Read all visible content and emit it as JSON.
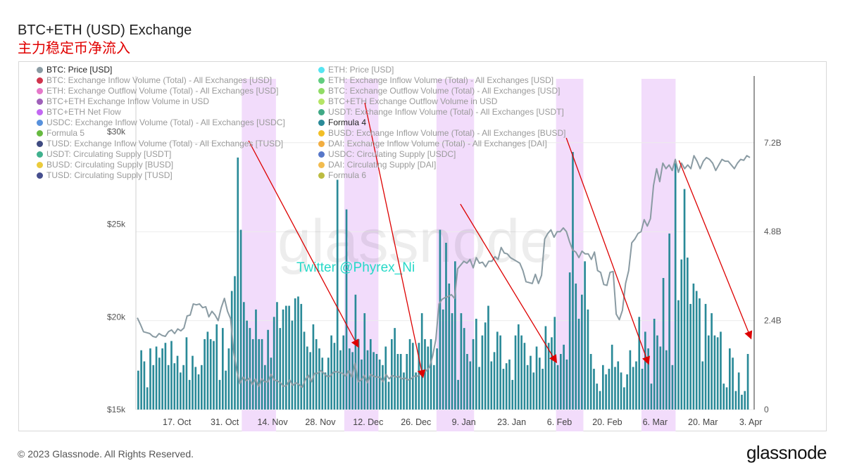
{
  "header": {
    "title": "BTC+ETH (USD) Exchange",
    "subtitle": "主力稳定币净流入"
  },
  "footer": {
    "copyright": "© 2023 Glassnode. All Rights Reserved.",
    "logo": "glassnode"
  },
  "colors": {
    "bars": "#2a8a98",
    "price": "#8a9ba3",
    "highlight": "#f2dcfb",
    "arrow": "#dd0000",
    "handle": "#26d9c8"
  },
  "legend": {
    "left": [
      {
        "label": "BTC: Price [USD]",
        "color": "#8a9ba3",
        "active": true
      },
      {
        "label": "BTC: Exchange Inflow Volume (Total) - All Exchanges [USD]",
        "color": "#c8102e",
        "active": false
      },
      {
        "label": "ETH: Exchange Outflow Volume (Total) - All Exchanges [USD]",
        "color": "#e060c0",
        "active": false
      },
      {
        "label": "BTC+ETH Exchange Inflow Volume in USD",
        "color": "#8e44ad",
        "active": false
      },
      {
        "label": "BTC+ETH Net Flow",
        "color": "#b94ef0",
        "active": false
      },
      {
        "label": "USDC: Exchange Inflow Volume (Total) - All Exchanges [USDC]",
        "color": "#3b7ed6",
        "active": false
      },
      {
        "label": "Formula 5",
        "color": "#4cae1f",
        "active": false
      },
      {
        "label": "TUSD: Exchange Inflow Volume (Total) - All Exchanges [TUSD]",
        "color": "#1d2b6b",
        "active": false
      },
      {
        "label": "USDT: Circulating Supply [USDT]",
        "color": "#1fa37a",
        "active": false
      },
      {
        "label": "BUSD: Circulating Supply [BUSD]",
        "color": "#e8c21a",
        "active": false
      },
      {
        "label": "TUSD: Circulating Supply [TUSD]",
        "color": "#26307a",
        "active": false
      }
    ],
    "right": [
      {
        "label": "ETH: Price [USD]",
        "color": "#38e0f0",
        "active": false
      },
      {
        "label": "ETH: Exchange Inflow Volume (Total) - All Exchanges [USD]",
        "color": "#45c46a",
        "active": false
      },
      {
        "label": "BTC: Exchange Outflow Volume (Total) - All Exchanges [USD]",
        "color": "#7dd64a",
        "active": false
      },
      {
        "label": "BTC+ETH Exchange Outflow Volume in USD",
        "color": "#a8e04a",
        "active": false
      },
      {
        "label": "USDT: Exchange Inflow Volume (Total) - All Exchanges [USDT]",
        "color": "#1f9a70",
        "active": false
      },
      {
        "label": "Formula 4",
        "color": "#2a8a98",
        "active": true
      },
      {
        "label": "BUSD: Exchange Inflow Volume (Total) - All Exchanges [BUSD]",
        "color": "#f0b400",
        "active": false
      },
      {
        "label": "DAI: Exchange Inflow Volume (Total) - All Exchanges [DAI]",
        "color": "#f0a020",
        "active": false
      },
      {
        "label": "USDC: Circulating Supply [USDC]",
        "color": "#3a5fbf",
        "active": false
      },
      {
        "label": "DAI: Circulating Supply [DAI]",
        "color": "#f0b030",
        "active": false
      },
      {
        "label": "Formula 6",
        "color": "#b0b020",
        "active": false
      }
    ]
  },
  "chart_data": {
    "type": "bar+line",
    "x_range": [
      "Oct 5",
      "Apr 4"
    ],
    "x_ticks": [
      "17. Oct",
      "31. Oct",
      "14. Nov",
      "28. Nov",
      "12. Dec",
      "26. Dec",
      "9. Jan",
      "23. Jan",
      "6. Feb",
      "20. Feb",
      "6. Mar",
      "20. Mar",
      "3. Apr"
    ],
    "left_axis": {
      "label": "BTC: Price [USD]",
      "range": [
        15000,
        33000
      ],
      "ticks": [
        "$15k",
        "$20k",
        "$25k",
        "$30k"
      ]
    },
    "right_axis": {
      "label": "Formula 4",
      "range": [
        0,
        9000000000
      ],
      "ticks": [
        "0",
        "2.4B",
        "4.8B",
        "7.2B"
      ]
    },
    "series": [
      {
        "name": "Formula 4",
        "type": "bar",
        "axis": "right",
        "unit": "B USD",
        "values": [
          1.05,
          1.6,
          1.3,
          0.6,
          1.65,
          1.2,
          1.7,
          1.4,
          1.65,
          1.8,
          1.2,
          1.85,
          1.25,
          1.45,
          1.0,
          1.2,
          1.95,
          0.8,
          1.45,
          1.15,
          0.95,
          1.2,
          1.9,
          2.1,
          1.9,
          1.85,
          2.3,
          0.8,
          2.2,
          1.05,
          1.65,
          3.2,
          3.6,
          6.8,
          4.85,
          2.9,
          2.4,
          2.2,
          1.9,
          2.7,
          1.9,
          1.9,
          1.2,
          2.15,
          1.4,
          2.5,
          2.9,
          2.2,
          2.7,
          2.8,
          2.8,
          2.4,
          3.0,
          3.05,
          2.85,
          2.1,
          1.7,
          1.55,
          2.3,
          1.9,
          1.65,
          1.4,
          1.0,
          1.4,
          2.0,
          1.8,
          6.2,
          1.6,
          2.0,
          5.4,
          1.65,
          1.55,
          3.1,
          1.9,
          1.35,
          2.6,
          1.6,
          1.9,
          1.55,
          1.5,
          1.35,
          1.2,
          1.7,
          0.75,
          1.9,
          2.2,
          1.5,
          1.5,
          1.0,
          1.5,
          1.9,
          1.8,
          1.0,
          1.8,
          2.6,
          1.9,
          1.7,
          1.9,
          1.2,
          1.65,
          4.85,
          2.7,
          4.5,
          3.4,
          2.6,
          4.0,
          0.8,
          2.6,
          2.2,
          1.5,
          1.3,
          1.9,
          2.45,
          1.15,
          2.0,
          2.35,
          2.8,
          1.3,
          1.55,
          2.1,
          2.0,
          1.1,
          1.25,
          1.35,
          0.8,
          2.0,
          2.3,
          2.0,
          1.8,
          1.2,
          1.45,
          1.0,
          1.7,
          1.4,
          1.1,
          2.25,
          1.8,
          1.95,
          2.5,
          1.2,
          1.5,
          1.75,
          1.35,
          3.7,
          6.95,
          3.4,
          2.45,
          3.1,
          4.0,
          2.7,
          1.5,
          1.1,
          0.7,
          0.5,
          1.2,
          0.95,
          1.1,
          1.75,
          1.15,
          1.3,
          1.0,
          0.6,
          0.95,
          1.6,
          1.15,
          1.3,
          2.5,
          1.1,
          2.1,
          1.65,
          0.7,
          2.45,
          2.0,
          1.7,
          3.55,
          1.6,
          4.75,
          1.2,
          6.65,
          2.95,
          4.05,
          5.95,
          4.1,
          2.85,
          3.4,
          3.2,
          3.0,
          1.3,
          2.85,
          2.0,
          2.6,
          2.0,
          1.95,
          2.1,
          0.7,
          0.6,
          1.65,
          1.4,
          0.5,
          1.0,
          0.4,
          0.5,
          1.5
        ]
      },
      {
        "name": "BTC: Price [USD]",
        "type": "line",
        "axis": "left",
        "unit": "USD",
        "values": [
          19950,
          19600,
          19200,
          19150,
          19100,
          18950,
          18900,
          19100,
          19000,
          18950,
          19200,
          19300,
          19100,
          19350,
          19250,
          19400,
          20050,
          20100,
          20700,
          20650,
          20700,
          20500,
          20550,
          20000,
          20300,
          20100,
          19800,
          20500,
          21000,
          20300,
          19900,
          18100,
          17100,
          16400,
          16750,
          16550,
          16700,
          16350,
          16650,
          16250,
          16650,
          16500,
          16500,
          16900,
          16600,
          16550,
          16450,
          16250,
          16300,
          16600,
          16300,
          16450,
          16350,
          16200,
          16600,
          16850,
          16500,
          16950,
          16950,
          17100,
          16950,
          16800,
          16800,
          17000,
          17050,
          17000,
          16950,
          16800,
          17100,
          16750,
          17500,
          16500,
          16600,
          16850,
          16450,
          16900,
          16800,
          16750,
          16750,
          16500,
          16900,
          16650,
          16850,
          16750,
          16800,
          16650,
          16700,
          16600,
          16650,
          16800,
          16800,
          16900,
          17000,
          17100,
          17300,
          17900,
          18800,
          20700,
          20950,
          21050,
          21100,
          21200,
          21000,
          22600,
          22800,
          23000,
          22900,
          23100,
          22650,
          23200,
          22900,
          22950,
          22700,
          23000,
          23000,
          23250,
          23100,
          23750,
          23450,
          23400,
          23200,
          23100,
          23000,
          22900,
          22500,
          21900,
          21850,
          21800,
          22300,
          21800,
          22250,
          24200,
          24500,
          24700,
          24300,
          24600,
          24600,
          24800,
          24600,
          24050,
          23600,
          23500,
          23200,
          23550,
          23400,
          23400,
          23100,
          23500,
          22500,
          22400,
          21750,
          21700,
          22400,
          22450,
          20150,
          19850,
          20350,
          21800,
          22500,
          24000,
          24200,
          24500,
          24600,
          25250,
          24900,
          25300,
          27100,
          28000,
          27300,
          28300,
          28000,
          28200,
          27900,
          28500,
          27800,
          28300,
          28000,
          28200,
          28000,
          28700,
          28400,
          28000,
          28400,
          28600,
          28500,
          28300,
          27900,
          28200,
          28500,
          28400,
          28400,
          28200,
          28000,
          28300,
          28500,
          28450,
          28700,
          28600
        ]
      }
    ],
    "highlight_bands": [
      [
        "Nov 5",
        "Nov 15"
      ],
      [
        "Dec 5",
        "Dec 15"
      ],
      [
        "Jan 1",
        "Jan 12"
      ],
      [
        "Feb 5",
        "Feb 13"
      ],
      [
        "Mar 2",
        "Mar 12"
      ]
    ],
    "trend_arrows": [
      {
        "from": "Nov 7",
        "to": "Dec 9"
      },
      {
        "from": "Dec 11",
        "to": "Dec 28"
      },
      {
        "from": "Jan 8",
        "to": "Feb 5"
      },
      {
        "from": "Feb 8",
        "to": "Mar 4"
      },
      {
        "from": "Mar 13",
        "to": "Apr 3"
      }
    ],
    "annotations": [
      "glassnode",
      "Twitter @Phyrex_Ni"
    ]
  }
}
